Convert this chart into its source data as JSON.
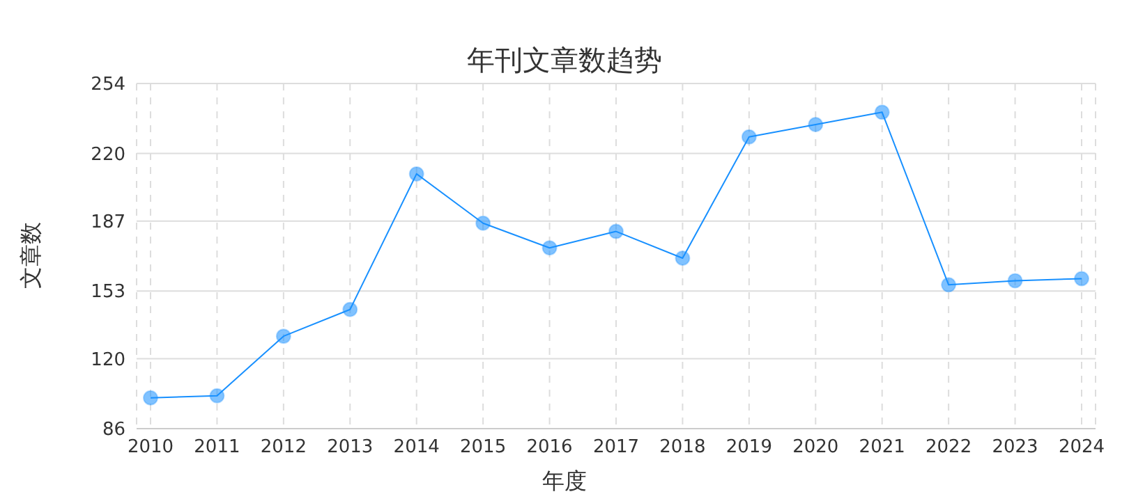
{
  "chart_data": {
    "type": "line",
    "title": "年刊文章数趋势",
    "xlabel": "年度",
    "ylabel": "文章数",
    "categories": [
      "2010",
      "2011",
      "2012",
      "2013",
      "2014",
      "2015",
      "2016",
      "2017",
      "2018",
      "2019",
      "2020",
      "2021",
      "2022",
      "2023",
      "2024"
    ],
    "series": [
      {
        "color": "#1890ff",
        "values": [
          101,
          102,
          131,
          144,
          210,
          186,
          174,
          182,
          169,
          228,
          234,
          240,
          156,
          158,
          159
        ]
      }
    ],
    "ylim": [
      86,
      254
    ],
    "yticks": [
      86,
      120,
      153,
      187,
      220,
      254
    ],
    "grid": true,
    "marker": "circle",
    "line_style": "solid",
    "legend": false
  }
}
